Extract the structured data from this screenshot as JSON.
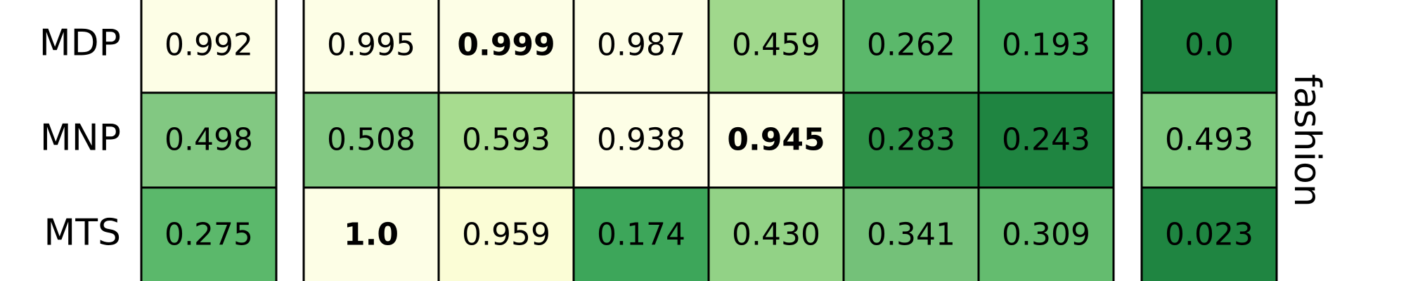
{
  "chart_data": {
    "type": "heatmap",
    "side_label": "fashion",
    "rows": [
      "MDP",
      "MNP",
      "MTS"
    ],
    "blocks": [
      {
        "values": [
          [
            0.992
          ],
          [
            0.498
          ],
          [
            0.275
          ]
        ],
        "labels": [
          [
            "0.992"
          ],
          [
            "0.498"
          ],
          [
            "0.275"
          ]
        ],
        "bold": [
          [
            false
          ],
          [
            false
          ],
          [
            false
          ]
        ]
      },
      {
        "values": [
          [
            0.995,
            0.999,
            0.987,
            0.459,
            0.262,
            0.193
          ],
          [
            0.508,
            0.593,
            0.938,
            0.945,
            0.283,
            0.243
          ],
          [
            1.0,
            0.959,
            0.174,
            0.43,
            0.341,
            0.309
          ]
        ],
        "labels": [
          [
            "0.995",
            "0.999",
            "0.987",
            "0.459",
            "0.262",
            "0.193"
          ],
          [
            "0.508",
            "0.593",
            "0.938",
            "0.945",
            "0.283",
            "0.243"
          ],
          [
            "1.0",
            "0.959",
            "0.174",
            "0.430",
            "0.341",
            "0.309"
          ]
        ],
        "bold": [
          [
            false,
            true,
            false,
            false,
            false,
            false
          ],
          [
            false,
            false,
            false,
            true,
            false,
            false
          ],
          [
            true,
            false,
            false,
            false,
            false,
            false
          ]
        ]
      },
      {
        "values": [
          [
            0.0
          ],
          [
            0.493
          ],
          [
            0.023
          ]
        ],
        "labels": [
          [
            "0.0"
          ],
          [
            "0.493"
          ],
          [
            "0.023"
          ]
        ],
        "bold": [
          [
            false
          ],
          [
            false
          ],
          [
            false
          ]
        ]
      }
    ],
    "colormap": "Greens (reversed)",
    "colors": {
      "0.992": "#fdfee6",
      "0.498": "#82c882",
      "0.275": "#5bb86b",
      "0.995": "#fdfee6",
      "0.999": "#fdfee6",
      "0.987": "#fdfee6",
      "0.459": "#a0d88c",
      "0.262": "#5bb86b",
      "0.193": "#43ad5f",
      "0.508": "#82c882",
      "0.593": "#a7dc8f",
      "0.938": "#fdfee6",
      "0.945": "#fdfee6",
      "0.283": "#2e9148",
      "0.243": "#1f8541",
      "1.0": "#fdfee6",
      "0.959": "#fbfdd6",
      "0.174": "#3da65a",
      "0.430": "#92d286",
      "0.341": "#74c179",
      "0.309": "#64bc6f",
      "0.0": "#1f8541",
      "0.493": "#7ec97e",
      "0.023": "#1f8541"
    }
  }
}
